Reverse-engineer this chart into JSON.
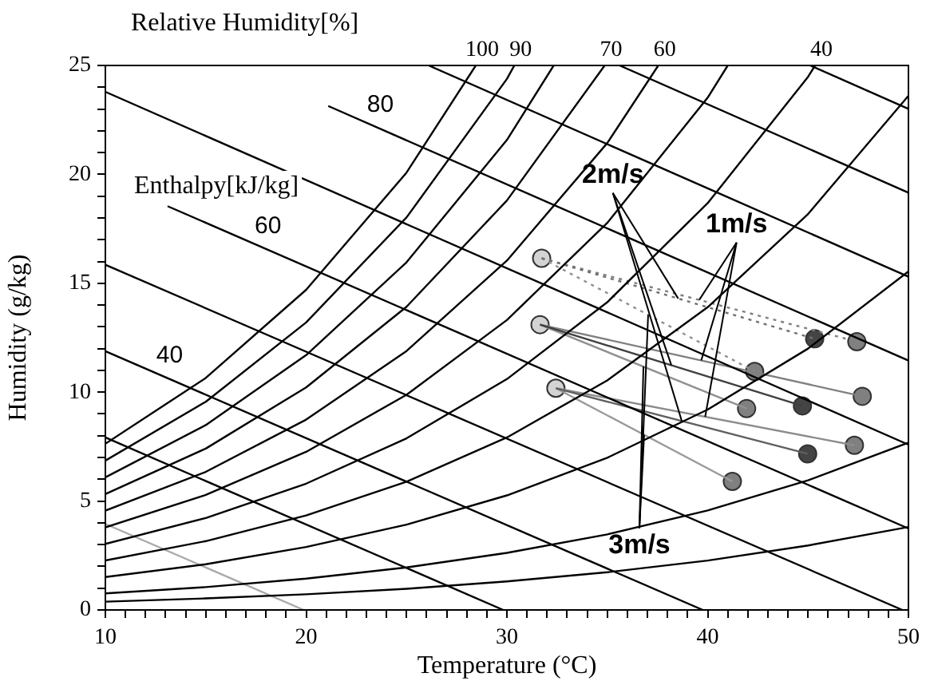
{
  "chart_data": {
    "type": "line",
    "xlabel": "Temperature (°C)",
    "ylabel": "Humidity (g/kg)",
    "xlim": [
      10,
      50
    ],
    "ylim": [
      0,
      25
    ],
    "xticks": [
      10,
      {
        "value": 11,
        "label": null
      },
      {
        "value": 12,
        "label": null
      },
      {
        "value": 13,
        "label": null
      },
      {
        "value": 14,
        "label": null
      },
      {
        "value": 15,
        "label": null
      },
      {
        "value": 16,
        "label": null
      },
      {
        "value": 17,
        "label": null
      },
      {
        "value": 18,
        "label": null
      },
      {
        "value": 19,
        "label": null
      },
      20,
      {
        "value": 21,
        "label": null
      },
      {
        "value": 22,
        "label": null
      },
      {
        "value": 23,
        "label": null
      },
      {
        "value": 24,
        "label": null
      },
      {
        "value": 25,
        "label": null
      },
      {
        "value": 26,
        "label": null
      },
      {
        "value": 27,
        "label": null
      },
      {
        "value": 28,
        "label": null
      },
      {
        "value": 29,
        "label": null
      },
      30,
      {
        "value": 31,
        "label": null
      },
      {
        "value": 32,
        "label": null
      },
      {
        "value": 33,
        "label": null
      },
      {
        "value": 34,
        "label": null
      },
      {
        "value": 35,
        "label": null
      },
      {
        "value": 36,
        "label": null
      },
      {
        "value": 37,
        "label": null
      },
      {
        "value": 38,
        "label": null
      },
      {
        "value": 39,
        "label": null
      },
      40,
      {
        "value": 41,
        "label": null
      },
      {
        "value": 42,
        "label": null
      },
      {
        "value": 43,
        "label": null
      },
      {
        "value": 44,
        "label": null
      },
      {
        "value": 45,
        "label": null
      },
      {
        "value": 46,
        "label": null
      },
      {
        "value": 47,
        "label": null
      },
      {
        "value": 48,
        "label": null
      },
      {
        "value": 49,
        "label": null
      },
      50
    ],
    "yticks": [
      0,
      {
        "value": 1,
        "label": null
      },
      {
        "value": 2,
        "label": null
      },
      {
        "value": 3,
        "label": null
      },
      {
        "value": 4,
        "label": null
      },
      5,
      {
        "value": 6,
        "label": null
      },
      {
        "value": 7,
        "label": null
      },
      {
        "value": 8,
        "label": null
      },
      {
        "value": 9,
        "label": null
      },
      10,
      {
        "value": 11,
        "label": null
      },
      {
        "value": 12,
        "label": null
      },
      {
        "value": 13,
        "label": null
      },
      {
        "value": 14,
        "label": null
      },
      15,
      {
        "value": 16,
        "label": null
      },
      {
        "value": 17,
        "label": null
      },
      {
        "value": 18,
        "label": null
      },
      {
        "value": 19,
        "label": null
      },
      20,
      {
        "value": 21,
        "label": null
      },
      {
        "value": 22,
        "label": null
      },
      {
        "value": 23,
        "label": null
      },
      {
        "value": 24,
        "label": null
      },
      25
    ],
    "marker": "none",
    "line_style": "solid",
    "annotations": [
      "Relative Humidity[%]",
      {
        "text": "100",
        "x": 28.45,
        "y": 25
      },
      {
        "text": "90",
        "x": 30.37,
        "y": 25
      },
      {
        "text": "70",
        "x": 34.87,
        "y": 25
      },
      {
        "text": "60",
        "x": 37.54,
        "y": 25
      },
      {
        "text": "40",
        "x": 45.35,
        "y": 25
      },
      "Enthalpy[kJ/kg]",
      {
        "text": "40",
        "x": 13.2,
        "y": 10.58
      },
      {
        "text": "60",
        "x": 18.1,
        "y": 16.49
      },
      {
        "text": "80",
        "x": 23.7,
        "y": 22.07
      },
      {
        "text": "2m/s",
        "x": 38.19,
        "y": 11.24
      },
      {
        "text": "1m/s",
        "x": 39.68,
        "y": 11.46
      },
      {
        "text": "3m/s",
        "x": 36.8,
        "y": 11.18
      }
    ],
    "series": [
      {
        "type": "line",
        "color": "#000000",
        "x": [
          10,
          15,
          20,
          25,
          28.45
        ],
        "values": [
          7.63,
          10.65,
          14.7,
          20.08,
          25
        ]
      },
      {
        "type": "line",
        "color": "#000000",
        "x": [
          10,
          15,
          20,
          25,
          30,
          30.37
        ],
        "values": [
          6.86,
          9.56,
          13.2,
          18.02,
          24.38,
          25
        ]
      },
      {
        "type": "line",
        "color": "#000000",
        "x": [
          10,
          15,
          20,
          25,
          30,
          32.33
        ],
        "values": [
          6.09,
          8.49,
          11.7,
          15.96,
          21.58,
          25
        ]
      },
      {
        "type": "line",
        "color": "#000000",
        "x": [
          10,
          15,
          20,
          25,
          30,
          34.87
        ],
        "values": [
          5.32,
          7.41,
          10.22,
          13.92,
          18.8,
          25
        ]
      },
      {
        "type": "line",
        "color": "#000000",
        "x": [
          10,
          15,
          20,
          25,
          30,
          35,
          37.54
        ],
        "values": [
          4.56,
          6.34,
          8.74,
          11.89,
          16.04,
          21.44,
          25
        ]
      },
      {
        "type": "line",
        "color": "#000000",
        "x": [
          10,
          15,
          20,
          25,
          30,
          35,
          40,
          41.0
        ],
        "values": [
          3.79,
          5.28,
          7.26,
          9.88,
          13.31,
          17.77,
          23.52,
          25
        ]
      },
      {
        "type": "line",
        "color": "#000000",
        "x": [
          10,
          15,
          20,
          25,
          30,
          35,
          40,
          45,
          45.35
        ],
        "values": [
          3.03,
          4.22,
          5.8,
          7.88,
          10.6,
          14.13,
          18.68,
          24.48,
          25
        ]
      },
      {
        "type": "line",
        "color": "#000000",
        "x": [
          10,
          15,
          20,
          25,
          30,
          35,
          40,
          45,
          50
        ],
        "values": [
          2.27,
          3.16,
          4.34,
          5.89,
          7.92,
          10.54,
          13.9,
          18.18,
          23.61
        ]
      },
      {
        "type": "line",
        "color": "#000000",
        "x": [
          10,
          15,
          20,
          25,
          30,
          35,
          40,
          45,
          50
        ],
        "values": [
          1.51,
          2.1,
          2.89,
          3.92,
          5.26,
          6.99,
          9.2,
          12.0,
          15.54
        ]
      },
      {
        "type": "line",
        "color": "#000000",
        "x": [
          10,
          15,
          20,
          25,
          30,
          35,
          40,
          45,
          50
        ],
        "values": [
          0.76,
          1.05,
          1.44,
          1.95,
          2.62,
          3.47,
          4.57,
          5.95,
          7.68
        ]
      },
      {
        "type": "line",
        "color": "#000000",
        "x": [
          10,
          15,
          20,
          25,
          30,
          35,
          40,
          45,
          50
        ],
        "values": [
          0.38,
          0.53,
          0.72,
          0.97,
          1.31,
          1.73,
          2.27,
          2.96,
          3.81
        ]
      },
      {
        "type": "line",
        "color": "#aaaaaa",
        "x": [
          10,
          19.88
        ],
        "values": [
          3.95,
          0
        ]
      },
      {
        "type": "line",
        "color": "#000000",
        "x": [
          10,
          29.82
        ],
        "values": [
          7.92,
          0
        ]
      },
      {
        "type": "line",
        "color": "#000000",
        "x": [
          10,
          39.76
        ],
        "values": [
          11.88,
          0
        ]
      },
      {
        "type": "line",
        "color": "#000000",
        "x": [
          10,
          49.7
        ],
        "values": [
          15.85,
          0
        ]
      },
      {
        "type": "line",
        "color": "#000000",
        "x": [
          13.1,
          50
        ],
        "values": [
          18.54,
          3.74
        ]
      },
      {
        "type": "line",
        "color": "#000000",
        "x": [
          10,
          50
        ],
        "values": [
          23.79,
          7.59
        ]
      },
      {
        "type": "line",
        "color": "#000000",
        "x": [
          21.1,
          50
        ],
        "values": [
          23.14,
          11.45
        ]
      },
      {
        "type": "line",
        "color": "#000000",
        "x": [
          26.1,
          50
        ],
        "values": [
          25,
          15.3
        ]
      },
      {
        "type": "line",
        "color": "#000000",
        "x": [
          35.61,
          50
        ],
        "values": [
          25,
          19.16
        ]
      },
      {
        "type": "line",
        "color": "#000000",
        "x": [
          45.11,
          50
        ],
        "values": [
          25,
          23.01
        ]
      },
      {
        "type": "line",
        "color": "#707070",
        "line_style": "dotted",
        "x": [
          31.73,
          45.33
        ],
        "values": [
          16.15,
          12.45
        ]
      },
      {
        "type": "line",
        "color": "#404040",
        "x": [
          31.65,
          44.72
        ],
        "values": [
          13.1,
          9.37
        ]
      },
      {
        "type": "line",
        "color": "#606060",
        "x": [
          32.44,
          44.98
        ],
        "values": [
          10.18,
          7.17
        ]
      },
      {
        "type": "line",
        "color": "#808080",
        "line_style": "dotted",
        "x": [
          31.73,
          47.43
        ],
        "values": [
          16.15,
          12.32
        ]
      },
      {
        "type": "line",
        "color": "#808080",
        "x": [
          31.65,
          47.7
        ],
        "values": [
          13.1,
          9.81
        ]
      },
      {
        "type": "line",
        "color": "#8c8c8c",
        "x": [
          32.44,
          47.31
        ],
        "values": [
          10.18,
          7.56
        ]
      },
      {
        "type": "line",
        "color": "#909090",
        "line_style": "dotted",
        "x": [
          31.73,
          42.34
        ],
        "values": [
          16.15,
          10.95
        ]
      },
      {
        "type": "line",
        "color": "#909090",
        "x": [
          31.65,
          41.94
        ],
        "values": [
          13.1,
          9.25
        ]
      },
      {
        "type": "line",
        "color": "#9a9a9a",
        "x": [
          32.44,
          41.23
        ],
        "values": [
          10.18,
          5.9
        ]
      },
      {
        "type": "scatter",
        "marker": "circle",
        "color": "#d3d3d3",
        "x": [
          31.73,
          31.65,
          32.44
        ],
        "values": [
          16.15,
          13.1,
          10.18
        ]
      },
      {
        "type": "scatter",
        "marker": "circle",
        "color": "#444444",
        "x": [
          45.33,
          44.72,
          44.98
        ],
        "values": [
          12.45,
          9.37,
          7.17
        ]
      },
      {
        "type": "scatter",
        "marker": "circle",
        "color": "#808080",
        "x": [
          47.43,
          42.34,
          47.7,
          41.94,
          47.31,
          41.23
        ],
        "values": [
          12.32,
          10.95,
          9.81,
          9.25,
          7.56,
          5.9
        ]
      }
    ]
  }
}
